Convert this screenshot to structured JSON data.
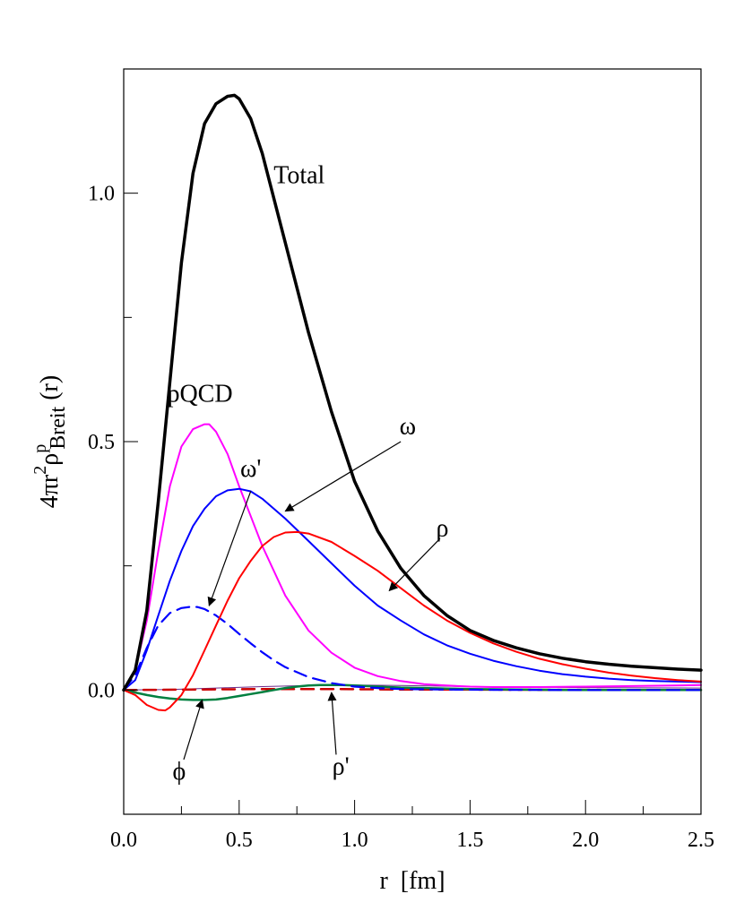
{
  "chart_data": {
    "type": "line",
    "title": "",
    "xlabel": "r  [fm]",
    "ylabel": {
      "base": "4πr",
      "sup1": "2",
      "rho": "ρ",
      "sup2": "p",
      "sub": "Breit",
      "arg": " (r)"
    },
    "xlim": [
      0.0,
      2.5
    ],
    "ylim": [
      -0.25,
      1.25
    ],
    "x_ticks": [
      {
        "v": 0.0,
        "label": "0.0"
      },
      {
        "v": 0.5,
        "label": "0.5"
      },
      {
        "v": 1.0,
        "label": "1.0"
      },
      {
        "v": 1.5,
        "label": "1.5"
      },
      {
        "v": 2.0,
        "label": "2.0"
      },
      {
        "v": 2.5,
        "label": "2.5"
      }
    ],
    "x_minor_ticks": [
      0.25,
      0.75,
      1.25,
      1.75,
      2.25
    ],
    "y_ticks": [
      {
        "v": 0.0,
        "label": "0.0"
      },
      {
        "v": 0.5,
        "label": "0.5"
      },
      {
        "v": 1.0,
        "label": "1.0"
      }
    ],
    "y_minor_ticks": [
      -0.25,
      0.25,
      0.75
    ],
    "grid": false,
    "legend": "none",
    "series": [
      {
        "key": "total",
        "color": "#000000",
        "width": 3.5,
        "dash": "",
        "x": [
          0,
          0.05,
          0.1,
          0.15,
          0.2,
          0.25,
          0.3,
          0.35,
          0.4,
          0.45,
          0.48,
          0.5,
          0.55,
          0.6,
          0.7,
          0.8,
          0.9,
          1.0,
          1.1,
          1.2,
          1.3,
          1.4,
          1.5,
          1.6,
          1.7,
          1.8,
          1.9,
          2.0,
          2.1,
          2.2,
          2.3,
          2.4,
          2.5
        ],
        "y": [
          0,
          0.04,
          0.16,
          0.38,
          0.62,
          0.86,
          1.04,
          1.14,
          1.18,
          1.195,
          1.197,
          1.19,
          1.15,
          1.08,
          0.9,
          0.72,
          0.56,
          0.42,
          0.32,
          0.245,
          0.19,
          0.15,
          0.12,
          0.1,
          0.085,
          0.073,
          0.064,
          0.057,
          0.052,
          0.048,
          0.045,
          0.042,
          0.04
        ]
      },
      {
        "key": "pqcd",
        "color": "#ff00ff",
        "width": 2,
        "dash": "",
        "x": [
          0,
          0.05,
          0.1,
          0.15,
          0.2,
          0.25,
          0.3,
          0.35,
          0.37,
          0.4,
          0.45,
          0.5,
          0.55,
          0.6,
          0.7,
          0.8,
          0.9,
          1.0,
          1.1,
          1.2,
          1.3,
          1.4,
          1.5,
          1.6,
          1.8,
          2.0,
          2.2,
          2.5
        ],
        "y": [
          0,
          0.04,
          0.14,
          0.28,
          0.41,
          0.49,
          0.525,
          0.535,
          0.535,
          0.52,
          0.475,
          0.41,
          0.35,
          0.29,
          0.19,
          0.12,
          0.075,
          0.045,
          0.028,
          0.018,
          0.012,
          0.009,
          0.007,
          0.006,
          0.006,
          0.007,
          0.008,
          0.01
        ]
      },
      {
        "key": "omega",
        "color": "#0000ff",
        "width": 2,
        "dash": "",
        "x": [
          0,
          0.05,
          0.1,
          0.15,
          0.2,
          0.25,
          0.3,
          0.35,
          0.4,
          0.45,
          0.5,
          0.55,
          0.6,
          0.7,
          0.8,
          0.9,
          1.0,
          1.1,
          1.2,
          1.3,
          1.4,
          1.5,
          1.6,
          1.7,
          1.8,
          1.9,
          2.0,
          2.1,
          2.2,
          2.3,
          2.4,
          2.5
        ],
        "y": [
          0,
          0.02,
          0.08,
          0.15,
          0.22,
          0.28,
          0.33,
          0.365,
          0.39,
          0.402,
          0.405,
          0.4,
          0.385,
          0.345,
          0.3,
          0.255,
          0.21,
          0.17,
          0.14,
          0.112,
          0.09,
          0.073,
          0.059,
          0.048,
          0.039,
          0.032,
          0.027,
          0.023,
          0.02,
          0.018,
          0.017,
          0.016
        ]
      },
      {
        "key": "rho",
        "color": "#ff0000",
        "width": 2,
        "dash": "",
        "x": [
          0,
          0.05,
          0.1,
          0.15,
          0.18,
          0.2,
          0.25,
          0.3,
          0.35,
          0.4,
          0.45,
          0.5,
          0.55,
          0.6,
          0.65,
          0.7,
          0.75,
          0.8,
          0.9,
          1.0,
          1.1,
          1.2,
          1.3,
          1.4,
          1.5,
          1.6,
          1.7,
          1.8,
          1.9,
          2.0,
          2.1,
          2.2,
          2.3,
          2.4,
          2.5
        ],
        "y": [
          0,
          -0.01,
          -0.03,
          -0.04,
          -0.041,
          -0.035,
          -0.01,
          0.03,
          0.08,
          0.13,
          0.18,
          0.225,
          0.26,
          0.29,
          0.308,
          0.317,
          0.318,
          0.315,
          0.298,
          0.27,
          0.24,
          0.205,
          0.17,
          0.14,
          0.115,
          0.094,
          0.077,
          0.063,
          0.052,
          0.043,
          0.035,
          0.029,
          0.024,
          0.02,
          0.017
        ]
      },
      {
        "key": "omega_prime",
        "color": "#0000ff",
        "width": 2.2,
        "dash": "14,8",
        "x": [
          0,
          0.05,
          0.1,
          0.15,
          0.2,
          0.25,
          0.3,
          0.32,
          0.35,
          0.4,
          0.45,
          0.5,
          0.55,
          0.6,
          0.65,
          0.7,
          0.8,
          0.9,
          1.0,
          1.1,
          1.2,
          1.4,
          1.6,
          1.8,
          2.0,
          2.5
        ],
        "y": [
          0,
          0.03,
          0.085,
          0.13,
          0.155,
          0.165,
          0.168,
          0.167,
          0.163,
          0.15,
          0.133,
          0.113,
          0.094,
          0.076,
          0.06,
          0.046,
          0.026,
          0.014,
          0.007,
          0.004,
          0.002,
          0.001,
          0.0005,
          0.0002,
          0.0001,
          0
        ]
      },
      {
        "key": "phi",
        "color": "#008040",
        "width": 2.5,
        "dash": "",
        "x": [
          0,
          0.05,
          0.1,
          0.15,
          0.2,
          0.25,
          0.3,
          0.35,
          0.4,
          0.45,
          0.5,
          0.55,
          0.6,
          0.65,
          0.7,
          0.75,
          0.8,
          0.85,
          0.9,
          0.95,
          1.0,
          1.1,
          1.2,
          1.3,
          1.4,
          1.5,
          1.7,
          2.0,
          2.5
        ],
        "y": [
          0,
          -0.005,
          -0.01,
          -0.014,
          -0.017,
          -0.019,
          -0.02,
          -0.02,
          -0.019,
          -0.016,
          -0.012,
          -0.008,
          -0.004,
          0.0,
          0.004,
          0.007,
          0.009,
          0.01,
          0.01,
          0.01,
          0.009,
          0.007,
          0.005,
          0.004,
          0.003,
          0.002,
          0.001,
          0.0,
          0.0
        ]
      },
      {
        "key": "rho_prime",
        "color": "#cc0000",
        "width": 2.5,
        "dash": "14,8",
        "x": [
          0,
          0.3,
          0.6,
          0.9,
          1.2,
          1.5,
          1.8,
          2.1,
          2.5
        ],
        "y": [
          0,
          0.001,
          0.002,
          0.002,
          0.001,
          0.001,
          0.0005,
          0.0002,
          0
        ]
      },
      {
        "key": "thin_purple",
        "color": "#6a2a8a",
        "width": 1,
        "dash": "",
        "x": [
          0,
          0.2,
          0.4,
          0.6,
          0.8,
          1.0,
          1.2,
          1.5,
          2.0,
          2.5
        ],
        "y": [
          0,
          0.001,
          0.004,
          0.007,
          0.009,
          0.01,
          0.009,
          0.007,
          0.005,
          0.004
        ]
      }
    ],
    "annotations": [
      {
        "name": "label-total",
        "text": "Total",
        "x": 0.76,
        "y": 1.02
      },
      {
        "name": "label-pqcd",
        "text": "pQCD",
        "x": 0.33,
        "y": 0.58
      },
      {
        "name": "label-omega",
        "text": "ω",
        "x": 1.23,
        "y": 0.515
      },
      {
        "name": "label-omega-prime",
        "text": "ω'",
        "x": 0.55,
        "y": 0.43
      },
      {
        "name": "label-rho",
        "text": "ρ",
        "x": 1.38,
        "y": 0.31
      },
      {
        "name": "label-phi",
        "text": "ϕ",
        "x": 0.24,
        "y": -0.18
      },
      {
        "name": "label-rho-prime",
        "text": "ρ'",
        "x": 0.94,
        "y": -0.17
      }
    ],
    "arrows": [
      {
        "name": "arrow-omega",
        "from": [
          1.2,
          0.5
        ],
        "to": [
          0.7,
          0.36
        ]
      },
      {
        "name": "arrow-omega-prime",
        "from": [
          0.55,
          0.4
        ],
        "to": [
          0.37,
          0.17
        ]
      },
      {
        "name": "arrow-rho",
        "from": [
          1.37,
          0.305
        ],
        "to": [
          1.15,
          0.2
        ]
      },
      {
        "name": "arrow-phi",
        "from": [
          0.26,
          -0.14
        ],
        "to": [
          0.34,
          -0.02
        ]
      },
      {
        "name": "arrow-rho-prime",
        "from": [
          0.92,
          -0.13
        ],
        "to": [
          0.9,
          -0.005
        ]
      }
    ]
  }
}
